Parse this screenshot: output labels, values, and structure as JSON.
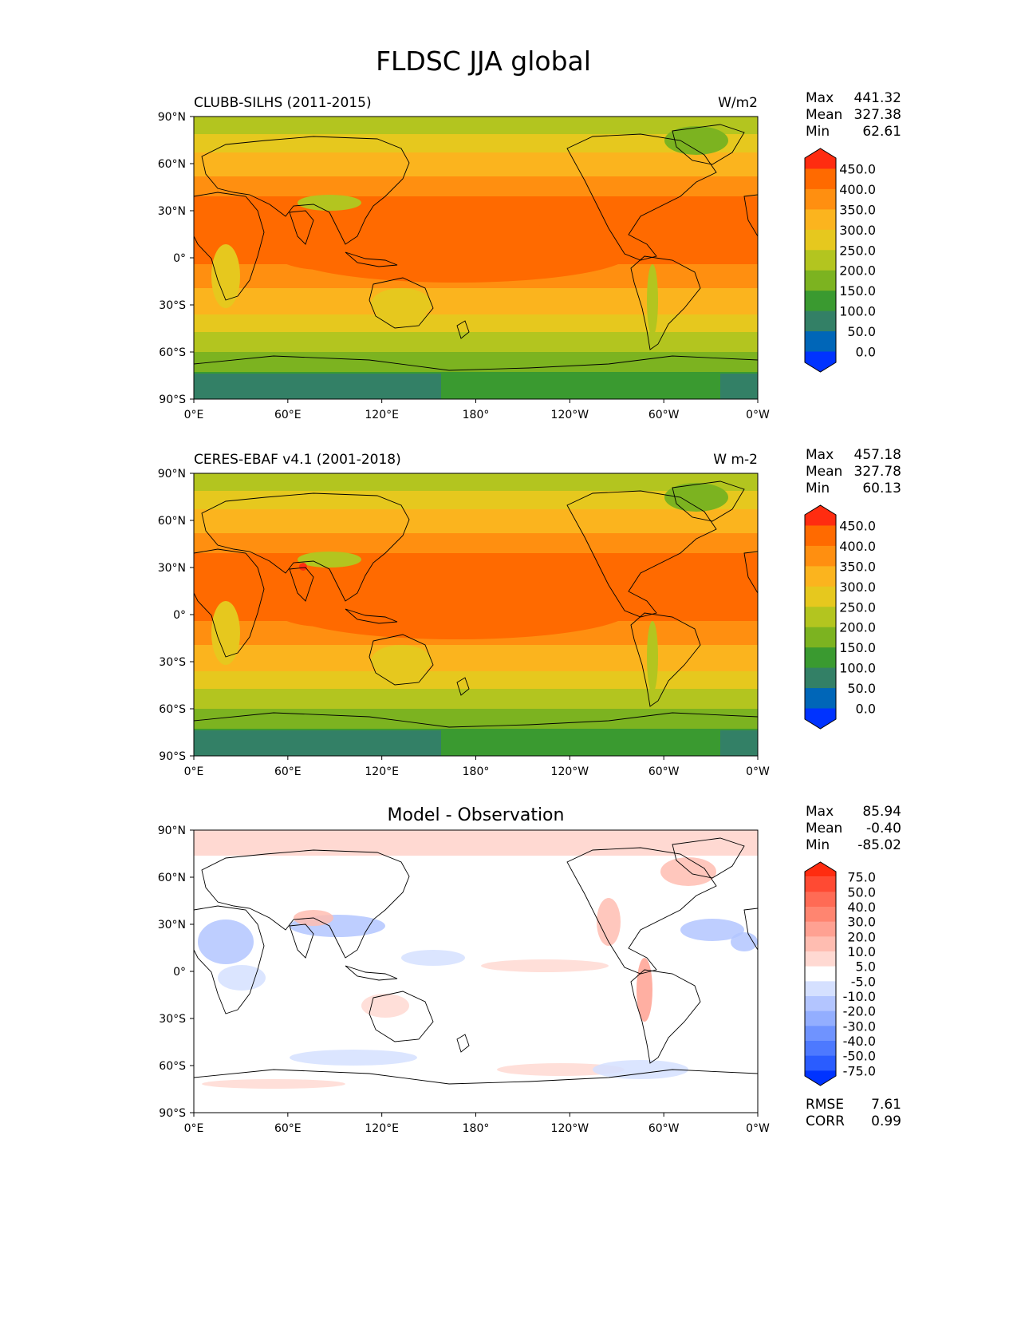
{
  "title": "FLDSC JJA global",
  "lat_ticks": [
    "90°N",
    "60°N",
    "30°N",
    "0°",
    "30°S",
    "60°S",
    "90°S"
  ],
  "lon_ticks": [
    "0°E",
    "60°E",
    "120°E",
    "180°",
    "120°W",
    "60°W",
    "0°W"
  ],
  "full_palette": [
    "#0033ff",
    "#0066b8",
    "#338066",
    "#3a9a30",
    "#7cb320",
    "#b3c51f",
    "#e6c81e",
    "#fbb41e",
    "#ff8f10",
    "#ff6a00",
    "#ff2c10"
  ],
  "diff_palette": [
    "#0033ff",
    "#2a5cff",
    "#4d79ff",
    "#6f93ff",
    "#93aeff",
    "#b3c5ff",
    "#d5e0ff",
    "#ffffff",
    "#ffd9d2",
    "#ffbdb1",
    "#ffa192",
    "#ff8570",
    "#ff6b55",
    "#ff4a33",
    "#ff2c10"
  ],
  "panels": [
    {
      "label": "CLUBB-SILHS (2011-2015)",
      "units": "W/m2",
      "stats": [
        {
          "name": "Max",
          "value": "441.32"
        },
        {
          "name": "Mean",
          "value": "327.38"
        },
        {
          "name": "Min",
          "value": "62.61"
        }
      ],
      "colorbar_labels": [
        "450.0",
        "400.0",
        "350.0",
        "300.0",
        "250.0",
        "200.0",
        "150.0",
        "100.0",
        "50.0",
        "0.0"
      ]
    },
    {
      "label": "CERES-EBAF v4.1 (2001-2018)",
      "units": "W m-2",
      "stats": [
        {
          "name": "Max",
          "value": "457.18"
        },
        {
          "name": "Mean",
          "value": "327.78"
        },
        {
          "name": "Min",
          "value": "60.13"
        }
      ],
      "colorbar_labels": [
        "450.0",
        "400.0",
        "350.0",
        "300.0",
        "250.0",
        "200.0",
        "150.0",
        "100.0",
        "50.0",
        "0.0"
      ]
    },
    {
      "title": "Model - Observation",
      "stats": [
        {
          "name": "Max",
          "value": "85.94"
        },
        {
          "name": "Mean",
          "value": "-0.40"
        },
        {
          "name": "Min",
          "value": "-85.02"
        }
      ],
      "colorbar_labels": [
        "75.0",
        "50.0",
        "40.0",
        "30.0",
        "20.0",
        "10.0",
        "5.0",
        "-5.0",
        "-10.0",
        "-20.0",
        "-30.0",
        "-40.0",
        "-50.0",
        "-75.0"
      ],
      "extra_stats": [
        {
          "name": "RMSE",
          "value": "7.61"
        },
        {
          "name": "CORR",
          "value": "0.99"
        }
      ]
    }
  ]
}
